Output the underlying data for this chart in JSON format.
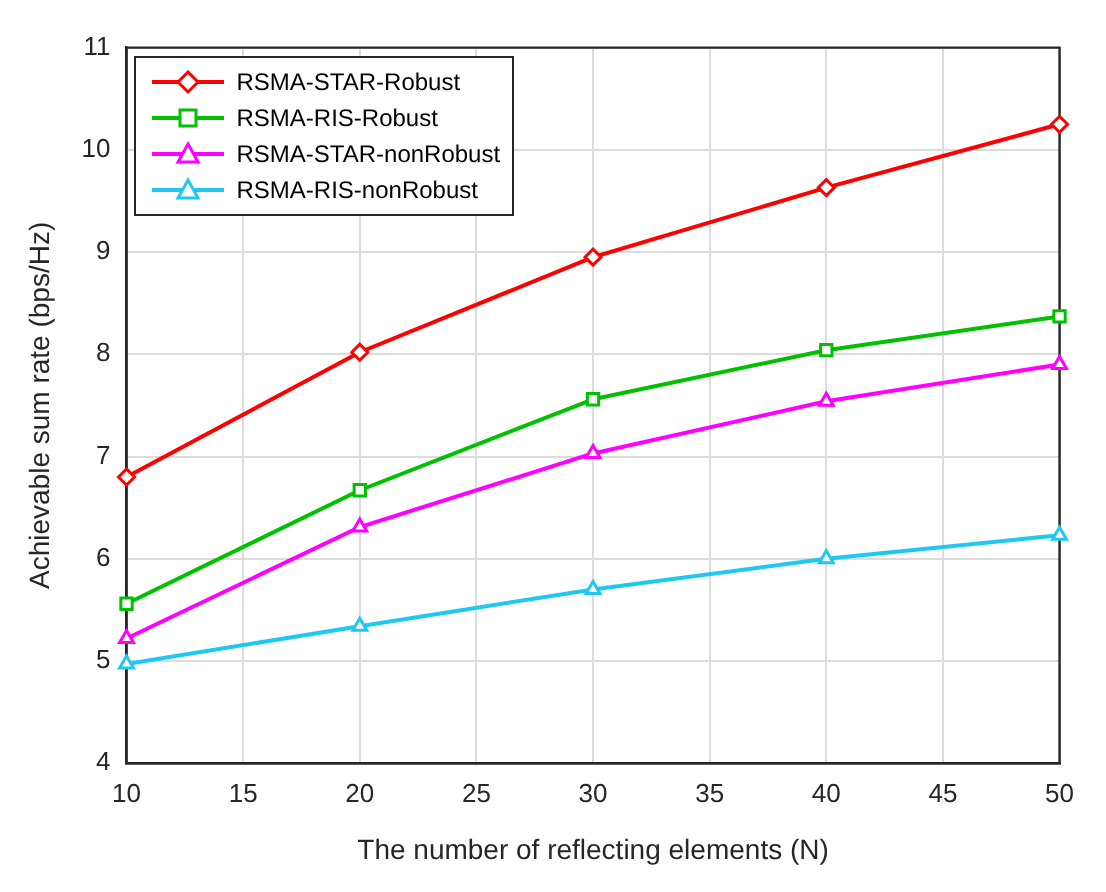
{
  "chart_data": {
    "type": "line",
    "xlabel": "The number of reflecting elements (N)",
    "ylabel": "Achievable sum rate (bps/Hz)",
    "x": [
      10,
      20,
      30,
      40,
      50
    ],
    "xlim": [
      10,
      50
    ],
    "xticks": [
      10,
      15,
      20,
      25,
      30,
      35,
      40,
      45,
      50
    ],
    "ylim": [
      4,
      11
    ],
    "yticks": [
      4,
      5,
      6,
      7,
      8,
      9,
      10,
      11
    ],
    "grid": true,
    "legend": "top left",
    "line_style": "solid",
    "series": [
      {
        "name": "RSMA-STAR-Robust",
        "color": "#ff0000",
        "marker": "diamond",
        "values": [
          6.8,
          8.02,
          8.95,
          9.63,
          10.25
        ]
      },
      {
        "name": "RSMA-RIS-Robust",
        "color": "#00c000",
        "marker": "square",
        "values": [
          5.56,
          6.67,
          7.56,
          8.04,
          8.37
        ]
      },
      {
        "name": "RSMA-STAR-nonRobust",
        "color": "#ff00ff",
        "marker": "triangle",
        "values": [
          5.22,
          6.31,
          7.03,
          7.54,
          7.9
        ]
      },
      {
        "name": "RSMA-RIS-nonRobust",
        "color": "#1ec8f0",
        "marker": "triangle",
        "values": [
          4.97,
          5.34,
          5.7,
          6.0,
          6.23
        ]
      }
    ]
  }
}
